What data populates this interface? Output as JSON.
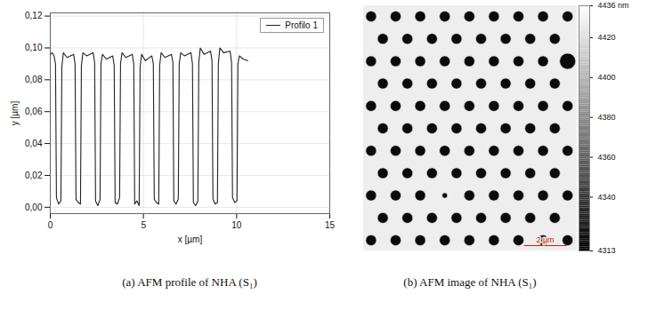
{
  "chart_data": [
    {
      "type": "line",
      "caption": "(a) AFM profile of NHA (S₁)",
      "xlabel": "x [µm]",
      "ylabel": "y [µm]",
      "xlim": [
        0,
        15
      ],
      "ylim": [
        -0.004,
        0.122
      ],
      "xticks": [
        0,
        5,
        10,
        15
      ],
      "yticks": [
        {
          "value": 0,
          "label": "0,00"
        },
        {
          "value": 0.02,
          "label": "0,02"
        },
        {
          "value": 0.04,
          "label": "0,04"
        },
        {
          "value": 0.06,
          "label": "0,06"
        },
        {
          "value": 0.08,
          "label": "0,08"
        },
        {
          "value": 0.1,
          "label": "0,10"
        },
        {
          "value": 0.12,
          "label": "0,12"
        }
      ],
      "grid": true,
      "legend": "upper right",
      "x": [
        0,
        0.1,
        0.2,
        0.28,
        0.33,
        0.45,
        0.57,
        0.62,
        0.7,
        0.9,
        1.25,
        1.33,
        1.38,
        1.5,
        1.62,
        1.67,
        1.75,
        1.95,
        2.3,
        2.38,
        2.43,
        2.55,
        2.67,
        2.72,
        2.8,
        3.0,
        3.35,
        3.43,
        3.48,
        3.6,
        3.72,
        3.77,
        3.85,
        4.05,
        4.4,
        4.48,
        4.53,
        4.65,
        4.77,
        4.82,
        4.9,
        5.1,
        5.45,
        5.53,
        5.58,
        5.7,
        5.82,
        5.87,
        5.95,
        6.15,
        6.5,
        6.58,
        6.63,
        6.75,
        6.87,
        6.92,
        7.0,
        7.2,
        7.55,
        7.63,
        7.68,
        7.8,
        7.92,
        7.97,
        8.05,
        8.25,
        8.6,
        8.68,
        8.73,
        8.85,
        8.97,
        9.02,
        9.1,
        9.3,
        9.65,
        9.73,
        9.78,
        9.9,
        10.02,
        10.07,
        10.15,
        10.35,
        10.6
      ],
      "series": [
        {
          "name": "Profilo 1",
          "color": "#222222",
          "values": [
            0.096,
            0.097,
            0.095,
            0.09,
            0.006,
            0.002,
            0.004,
            0.088,
            0.097,
            0.094,
            0.096,
            0.09,
            0.005,
            0.003,
            0.002,
            0.089,
            0.097,
            0.095,
            0.097,
            0.091,
            0.004,
            0.001,
            0.005,
            0.09,
            0.096,
            0.093,
            0.095,
            0.089,
            0.003,
            0.002,
            0.006,
            0.09,
            0.097,
            0.094,
            0.096,
            0.09,
            0.002,
            0.004,
            0.001,
            0.088,
            0.096,
            0.092,
            0.095,
            0.09,
            0.005,
            0.003,
            0.002,
            0.089,
            0.097,
            0.094,
            0.096,
            0.091,
            0.004,
            0.002,
            0.005,
            0.09,
            0.097,
            0.095,
            0.097,
            0.09,
            0.003,
            0.001,
            0.004,
            0.091,
            0.1,
            0.096,
            0.098,
            0.092,
            0.005,
            0.002,
            0.003,
            0.09,
            0.1,
            0.097,
            0.098,
            0.091,
            0.006,
            0.003,
            0.004,
            0.09,
            0.095,
            0.093,
            0.092
          ]
        }
      ]
    },
    {
      "type": "image",
      "caption": "(b) AFM image of NHA (S₁)",
      "tick_labels": false,
      "xlim": [
        0,
        10
      ],
      "ylim": [
        0,
        11.5
      ],
      "surface_value": 4428,
      "hole_value": 4318,
      "holes": [
        [
          0.35,
          0.5,
          0.5
        ],
        [
          1.5,
          0.5,
          0.5
        ],
        [
          2.65,
          0.5,
          0.5
        ],
        [
          3.8,
          0.5,
          0.5
        ],
        [
          4.95,
          0.5,
          0.5
        ],
        [
          6.1,
          0.5,
          0.5
        ],
        [
          7.25,
          0.5,
          0.5
        ],
        [
          8.4,
          0.5,
          0.5
        ],
        [
          9.55,
          0.5,
          0.5
        ],
        [
          0.9,
          1.55,
          0.5
        ],
        [
          2.05,
          1.55,
          0.5
        ],
        [
          3.2,
          1.55,
          0.5
        ],
        [
          4.35,
          1.55,
          0.5
        ],
        [
          5.5,
          1.55,
          0.5
        ],
        [
          6.65,
          1.55,
          0.5
        ],
        [
          7.8,
          1.55,
          0.5
        ],
        [
          8.95,
          1.55,
          0.5
        ],
        [
          0.35,
          2.6,
          0.5
        ],
        [
          1.5,
          2.6,
          0.5
        ],
        [
          2.65,
          2.6,
          0.5
        ],
        [
          3.8,
          2.6,
          0.5
        ],
        [
          4.95,
          2.6,
          0.5
        ],
        [
          6.1,
          2.6,
          0.5
        ],
        [
          7.25,
          2.6,
          0.5
        ],
        [
          8.4,
          2.6,
          0.5
        ],
        [
          9.55,
          2.6,
          0.75
        ],
        [
          0.9,
          3.65,
          0.5
        ],
        [
          2.05,
          3.65,
          0.5
        ],
        [
          3.2,
          3.65,
          0.5
        ],
        [
          4.35,
          3.65,
          0.5
        ],
        [
          5.5,
          3.65,
          0.5
        ],
        [
          6.65,
          3.65,
          0.5
        ],
        [
          7.8,
          3.65,
          0.5
        ],
        [
          8.95,
          3.65,
          0.5
        ],
        [
          0.35,
          4.7,
          0.5
        ],
        [
          1.5,
          4.7,
          0.5
        ],
        [
          2.65,
          4.7,
          0.5
        ],
        [
          3.8,
          4.7,
          0.5
        ],
        [
          4.95,
          4.7,
          0.5
        ],
        [
          6.1,
          4.7,
          0.5
        ],
        [
          7.25,
          4.7,
          0.5
        ],
        [
          8.4,
          4.7,
          0.5
        ],
        [
          9.55,
          4.7,
          0.5
        ],
        [
          0.9,
          5.75,
          0.5
        ],
        [
          2.05,
          5.75,
          0.5
        ],
        [
          3.2,
          5.75,
          0.5
        ],
        [
          4.35,
          5.75,
          0.5
        ],
        [
          5.5,
          5.75,
          0.5
        ],
        [
          6.65,
          5.75,
          0.5
        ],
        [
          7.8,
          5.75,
          0.5
        ],
        [
          8.95,
          5.75,
          0.5
        ],
        [
          0.35,
          6.8,
          0.5
        ],
        [
          1.5,
          6.8,
          0.5
        ],
        [
          2.65,
          6.8,
          0.5
        ],
        [
          3.8,
          6.8,
          0.5
        ],
        [
          4.95,
          6.8,
          0.5
        ],
        [
          6.1,
          6.8,
          0.5
        ],
        [
          7.25,
          6.8,
          0.5
        ],
        [
          8.4,
          6.8,
          0.5
        ],
        [
          9.55,
          6.8,
          0.5
        ],
        [
          0.9,
          7.85,
          0.5
        ],
        [
          2.05,
          7.85,
          0.5
        ],
        [
          3.2,
          7.85,
          0.5
        ],
        [
          4.35,
          7.85,
          0.5
        ],
        [
          5.5,
          7.85,
          0.5
        ],
        [
          6.65,
          7.85,
          0.5
        ],
        [
          7.8,
          7.85,
          0.5
        ],
        [
          8.95,
          7.85,
          0.5
        ],
        [
          0.35,
          8.9,
          0.5
        ],
        [
          1.5,
          8.9,
          0.5
        ],
        [
          2.65,
          8.9,
          0.5
        ],
        [
          3.8,
          8.9,
          0.25
        ],
        [
          4.95,
          8.9,
          0.5
        ],
        [
          6.1,
          8.9,
          0.5
        ],
        [
          7.25,
          8.9,
          0.5
        ],
        [
          8.4,
          8.9,
          0.5
        ],
        [
          9.55,
          8.9,
          0.5
        ],
        [
          0.9,
          9.95,
          0.5
        ],
        [
          2.05,
          9.95,
          0.5
        ],
        [
          3.2,
          9.95,
          0.5
        ],
        [
          4.35,
          9.95,
          0.5
        ],
        [
          5.5,
          9.95,
          0.5
        ],
        [
          6.65,
          9.95,
          0.5
        ],
        [
          7.8,
          9.95,
          0.5
        ],
        [
          8.95,
          9.95,
          0.5
        ],
        [
          0.35,
          11.0,
          0.5
        ],
        [
          1.5,
          11.0,
          0.5
        ],
        [
          2.65,
          11.0,
          0.5
        ],
        [
          3.8,
          11.0,
          0.5
        ],
        [
          4.95,
          11.0,
          0.5
        ],
        [
          6.1,
          11.0,
          0.5
        ],
        [
          7.25,
          11.0,
          0.5
        ],
        [
          8.4,
          11.0,
          0.5
        ],
        [
          9.55,
          11.0,
          0.5
        ]
      ],
      "colorbar": {
        "lim": [
          4313,
          4436
        ],
        "ticks": [
          {
            "value": 4436,
            "label": "4436 nm"
          },
          4420,
          4400,
          4380,
          4360,
          4340,
          4313
        ]
      },
      "scale_bar": {
        "length": 2,
        "label": "2 µm"
      }
    }
  ]
}
